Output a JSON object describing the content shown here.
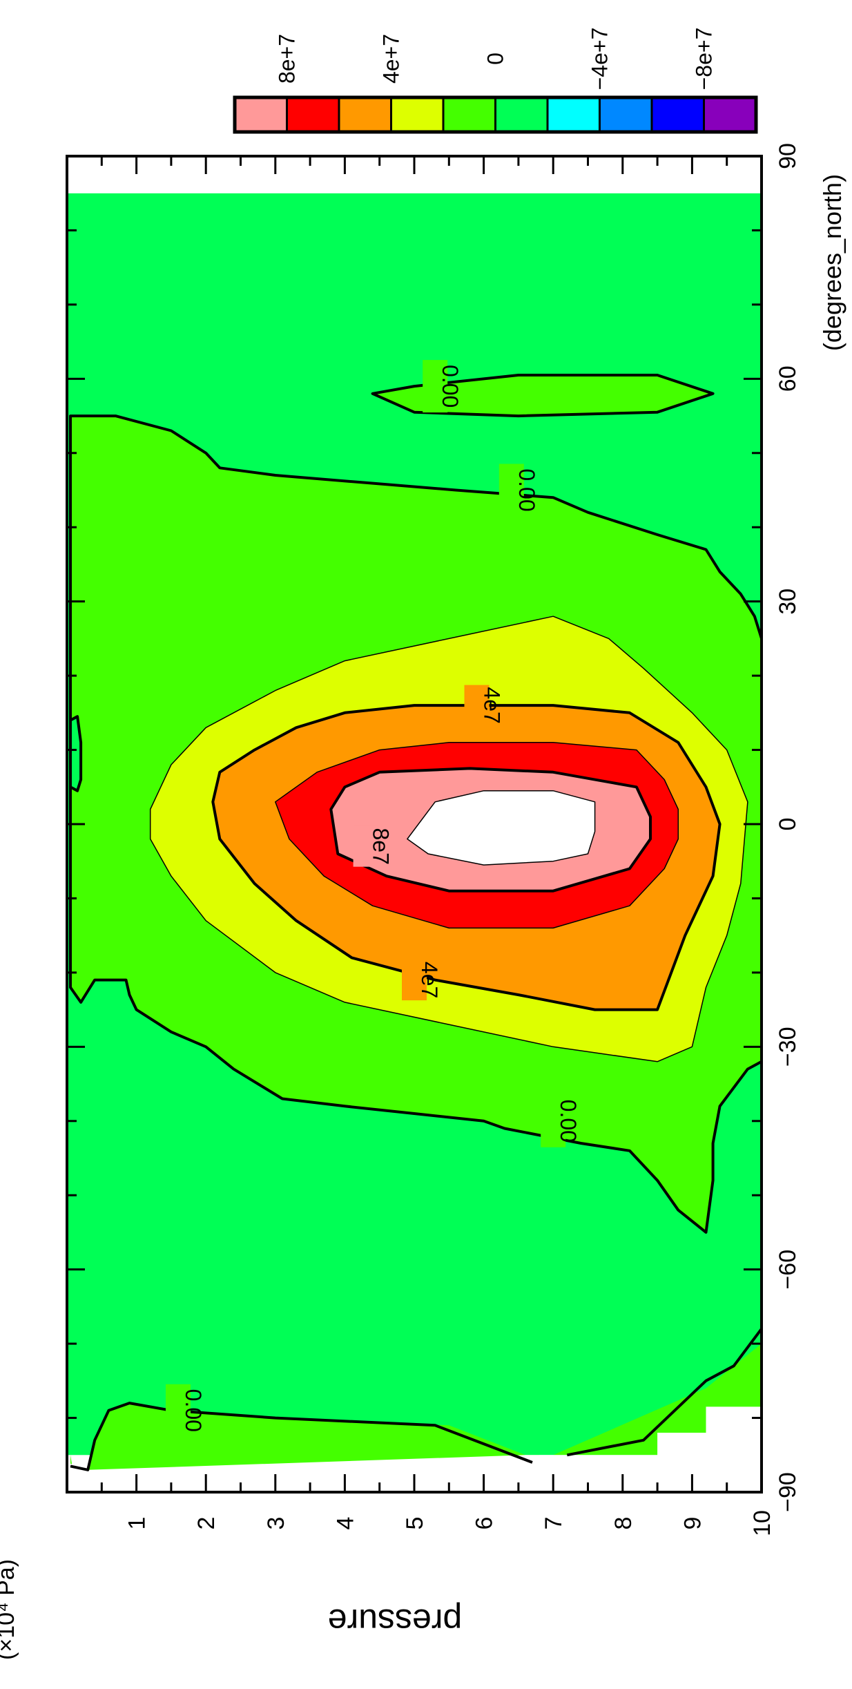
{
  "chart_data": {
    "type": "heatmap",
    "subtype": "filled-contour",
    "orientation": "rotated 90° counter-clockwise",
    "xlabel": "(degrees_north)",
    "ylabel": "pressure",
    "yunit": "(×10⁴ Pa)",
    "xlim": [
      -90,
      90
    ],
    "ylim": [
      10,
      0
    ],
    "x_ticks": [
      "−90",
      "−60",
      "−30",
      "0",
      "30",
      "60",
      "90"
    ],
    "x_tick_values": [
      -90,
      -60,
      -30,
      0,
      30,
      60,
      90
    ],
    "y_ticks": [
      "1",
      "2",
      "3",
      "4",
      "5",
      "6",
      "7",
      "8",
      "9",
      "10"
    ],
    "y_tick_values": [
      1,
      2,
      3,
      4,
      5,
      6,
      7,
      8,
      9,
      10
    ],
    "colorbar": {
      "labels": [
        "8e+7",
        "4e+7",
        "0",
        "−4e+7",
        "−8e+7"
      ],
      "label_values": [
        80000000,
        40000000,
        0,
        -40000000,
        -80000000
      ],
      "bins": [
        {
          "range": [
            80000000,
            100000000
          ],
          "color": "#ff9999"
        },
        {
          "range": [
            60000000,
            80000000
          ],
          "color": "#ff0000"
        },
        {
          "range": [
            40000000,
            60000000
          ],
          "color": "#ff9900"
        },
        {
          "range": [
            20000000,
            40000000
          ],
          "color": "#ddff00"
        },
        {
          "range": [
            0,
            20000000
          ],
          "color": "#44ff00"
        },
        {
          "range": [
            -20000000,
            0
          ],
          "color": "#00ff55"
        },
        {
          "range": [
            -40000000,
            -20000000
          ],
          "color": "#00ffff"
        },
        {
          "range": [
            -60000000,
            -40000000
          ],
          "color": "#0088ff"
        },
        {
          "range": [
            -80000000,
            -60000000
          ],
          "color": "#0000ff"
        },
        {
          "range": [
            -100000000,
            -80000000
          ],
          "color": "#8800bb"
        }
      ]
    },
    "contour_labels": [
      {
        "text": "8e7",
        "lat": -3,
        "p": 4.3
      },
      {
        "text": "4e7",
        "lat": 16,
        "p": 5.9
      },
      {
        "text": "4e7",
        "lat": -21,
        "p": 5.0
      },
      {
        "text": "0.00",
        "lat": 59,
        "p": 5.3
      },
      {
        "text": "0.00",
        "lat": 45,
        "p": 6.4
      },
      {
        "text": "0.00",
        "lat": -40,
        "p": 7.0
      },
      {
        "text": "0.00",
        "lat": -79,
        "p": 1.6
      }
    ],
    "missing_color": "#ffffff",
    "grid": false,
    "legend": "colorbar top-right"
  }
}
